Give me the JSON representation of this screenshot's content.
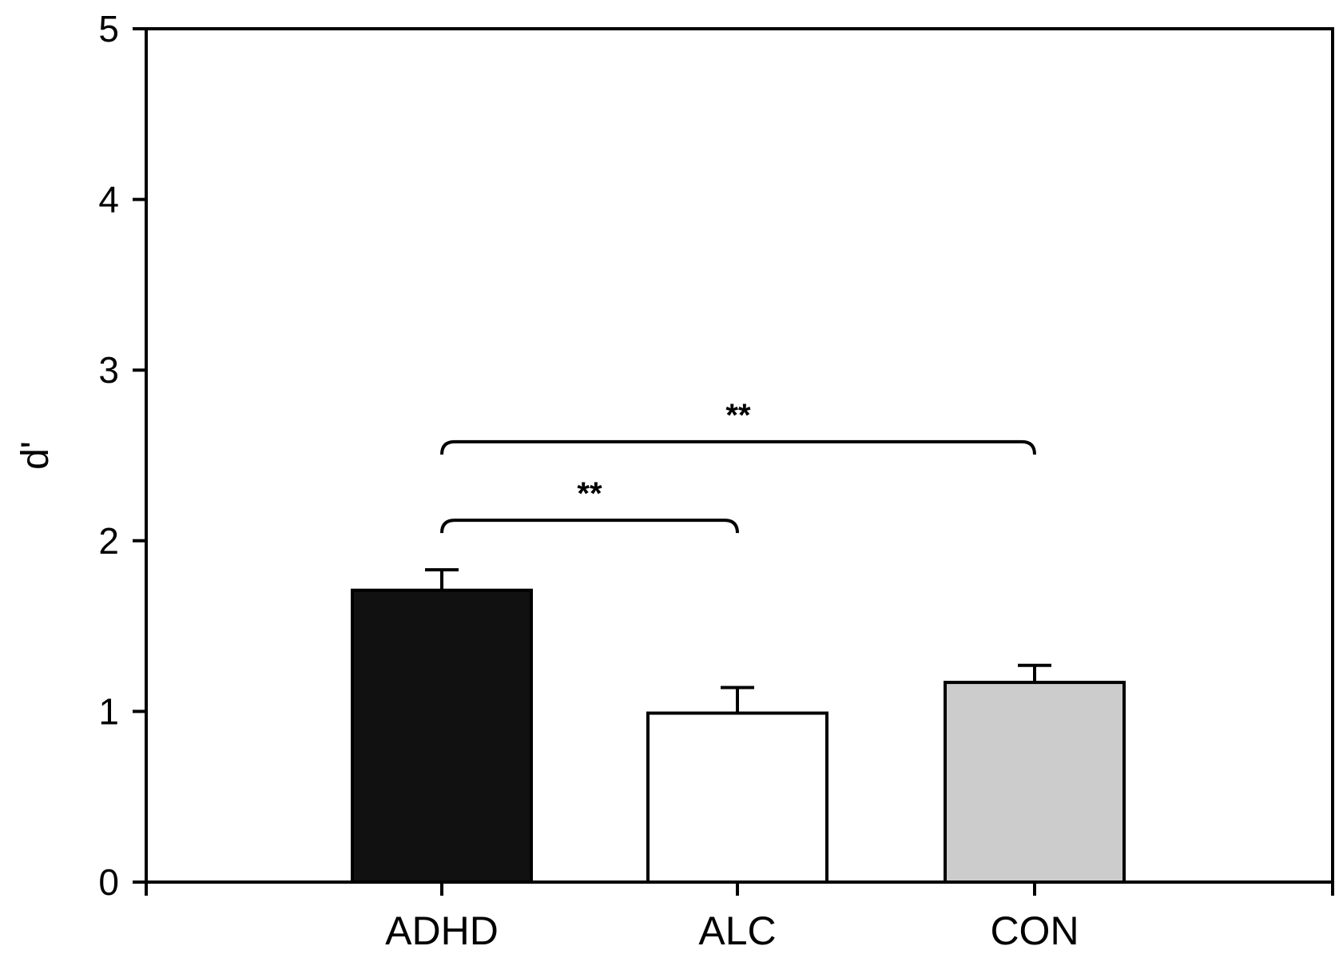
{
  "chart_data": {
    "type": "bar",
    "categories": [
      "ADHD",
      "ALC",
      "CON"
    ],
    "values": [
      1.71,
      0.99,
      1.17
    ],
    "errors": [
      0.12,
      0.15,
      0.1
    ],
    "colors": [
      "#111111",
      "#ffffff",
      "#cccccc"
    ],
    "title": "",
    "xlabel": "",
    "ylabel": "d'",
    "ylim": [
      0,
      5
    ],
    "yticks": [
      "0",
      "1",
      "2",
      "3",
      "4",
      "5"
    ],
    "grid": false,
    "significance": [
      {
        "from": "ADHD",
        "to": "ALC",
        "level": 2.12,
        "label": "**"
      },
      {
        "from": "ADHD",
        "to": "CON",
        "level": 2.58,
        "label": "**"
      }
    ]
  }
}
